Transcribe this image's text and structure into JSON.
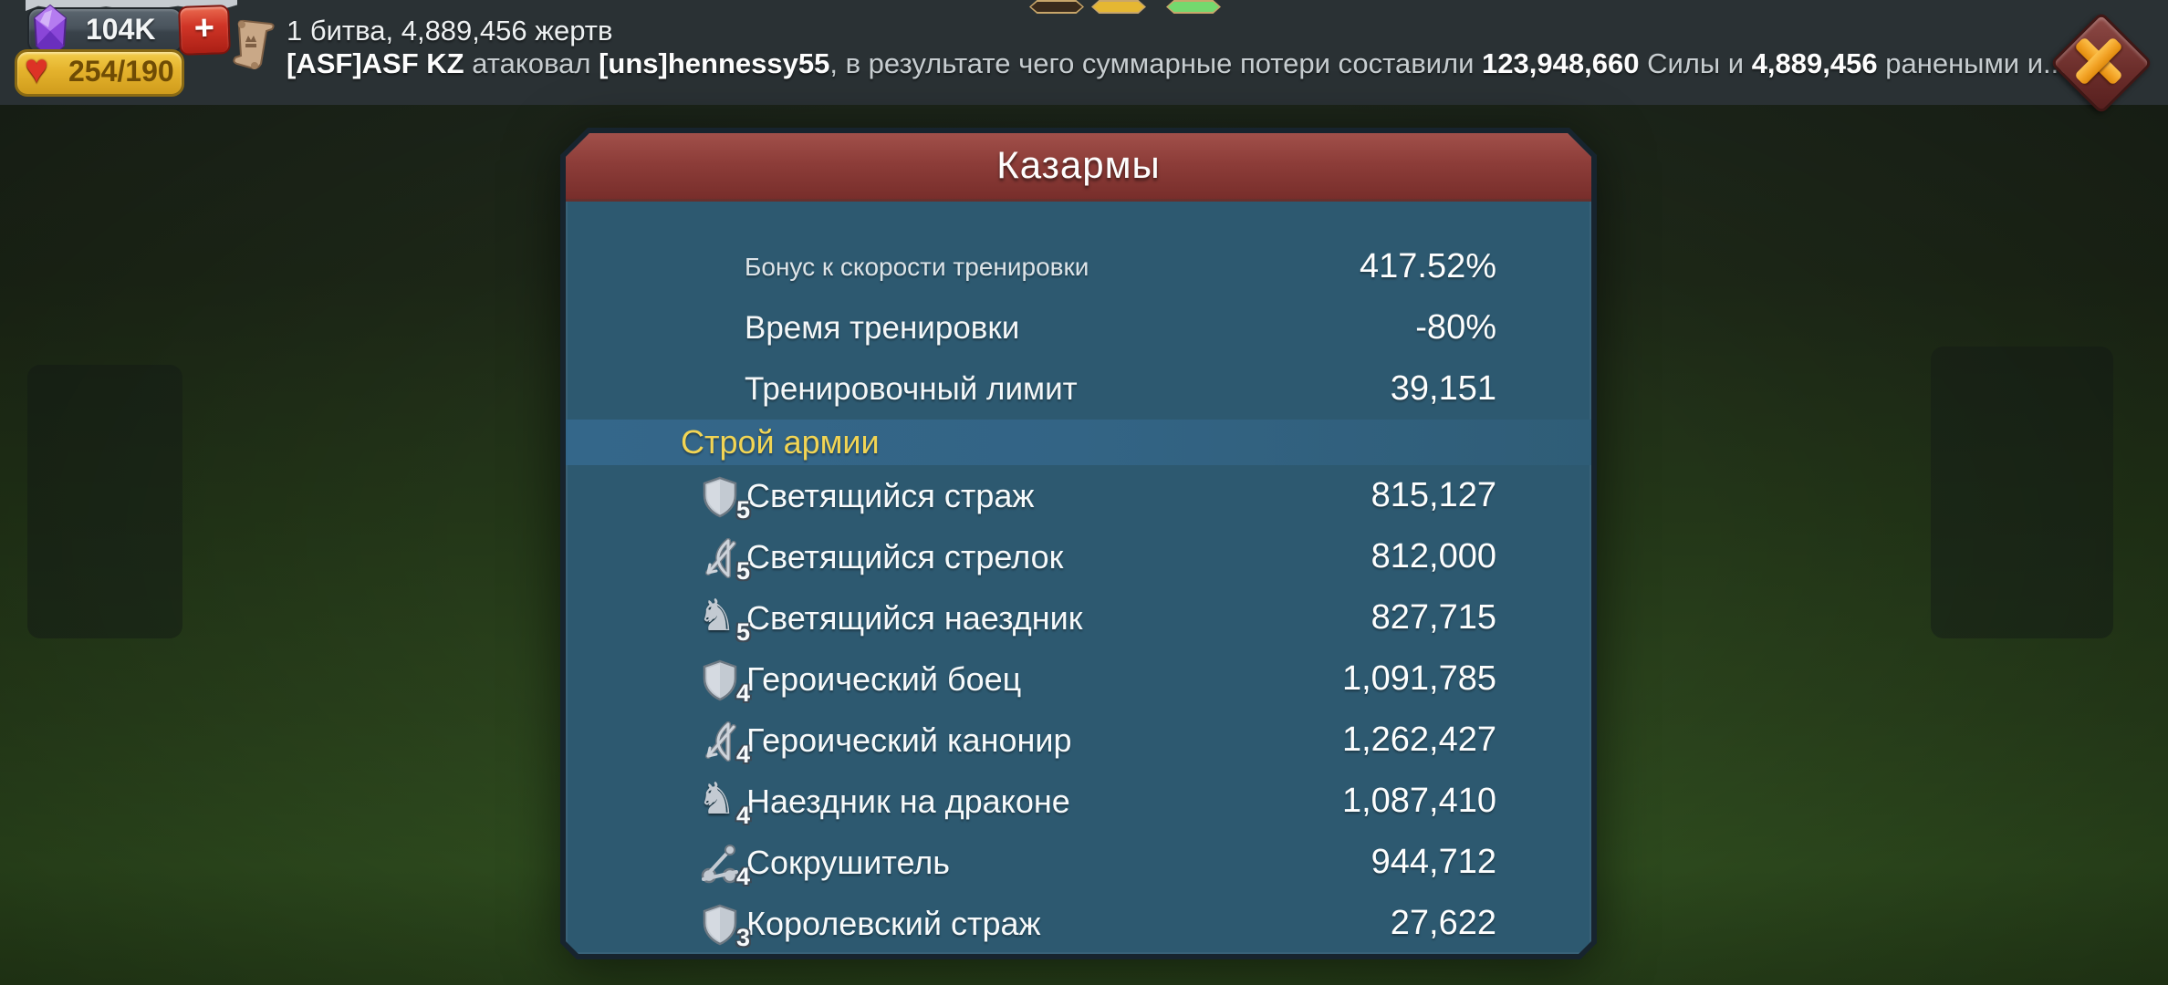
{
  "hud": {
    "gems": {
      "value": "104K",
      "plus_label": "+"
    },
    "hearts": {
      "value": "254/190"
    },
    "battle_report": {
      "line1": "1 битва, 4,889,456 жертв",
      "line2_segments": [
        {
          "text": "[ASF]ASF KZ",
          "bold": true
        },
        {
          "text": " атаковал ",
          "bold": false
        },
        {
          "text": "[uns]hennessy55",
          "bold": true
        },
        {
          "text": ", в результате чего суммарные потери составили ",
          "bold": false
        },
        {
          "text": "123,948,660",
          "bold": true
        },
        {
          "text": " Силы и ",
          "bold": false
        },
        {
          "text": "4,889,456",
          "bold": true
        },
        {
          "text": " ранеными и...",
          "bold": false
        }
      ]
    }
  },
  "panel": {
    "title": "Казармы",
    "stats": [
      {
        "label": "Бонус к скорости тренировки",
        "value": "417.52%"
      },
      {
        "label": "Время тренировки",
        "value": "-80%"
      },
      {
        "label": "Тренировочный лимит",
        "value": "39,151"
      }
    ],
    "section_title": "Строй армии",
    "troops": [
      {
        "icon": "shield",
        "tier": "5",
        "name": "Светящийся страж",
        "count": "815,127"
      },
      {
        "icon": "bow",
        "tier": "5",
        "name": "Светящийся стрелок",
        "count": "812,000"
      },
      {
        "icon": "horse",
        "tier": "5",
        "name": "Светящийся наездник",
        "count": "827,715"
      },
      {
        "icon": "shield",
        "tier": "4",
        "name": "Героический боец",
        "count": "1,091,785"
      },
      {
        "icon": "bow",
        "tier": "4",
        "name": "Героический канонир",
        "count": "1,262,427"
      },
      {
        "icon": "horse",
        "tier": "4",
        "name": "Наездник на драконе",
        "count": "1,087,410"
      },
      {
        "icon": "siege",
        "tier": "4",
        "name": "Сокрушитель",
        "count": "944,712"
      },
      {
        "icon": "shield",
        "tier": "3",
        "name": "Королевский страж",
        "count": "27,622"
      }
    ]
  },
  "colors": {
    "panel_body": "#2d5970",
    "panel_border": "#17242e",
    "banner_red": "#8d3d39",
    "section_band": "#33678a",
    "accent_yellow": "#f2d554",
    "hud_gold": "#e4b22c",
    "plus_red": "#d03527",
    "heart_red": "#dd3326",
    "gem_purple": "#9a5ae0",
    "close_body_red": "#6d2f2c",
    "close_x_orange": "#f2a225",
    "topbar_gray": "#2a3134"
  }
}
